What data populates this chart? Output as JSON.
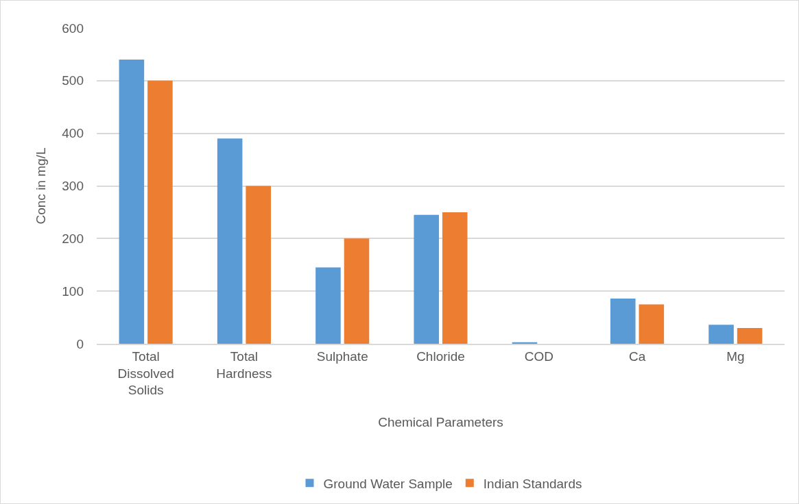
{
  "chart_data": {
    "type": "bar",
    "xlabel": "Chemical Parameters",
    "ylabel": "Conc in mg/L",
    "categories": [
      "Total Dissolved Solids",
      "Total Hardness",
      "Sulphate",
      "Chloride",
      "COD",
      "Ca",
      "Mg"
    ],
    "series": [
      {
        "name": "Ground Water Sample",
        "color": "#5b9bd5",
        "values": [
          540,
          390,
          145,
          245,
          3,
          86,
          36
        ]
      },
      {
        "name": "Indian Standards",
        "color": "#ed7d31",
        "values": [
          500,
          300,
          200,
          250,
          null,
          75,
          30
        ]
      }
    ],
    "ylim": [
      0,
      600
    ],
    "yticks": [
      0,
      100,
      200,
      300,
      400,
      500,
      600
    ],
    "grid": "y",
    "legend": "bottom"
  }
}
